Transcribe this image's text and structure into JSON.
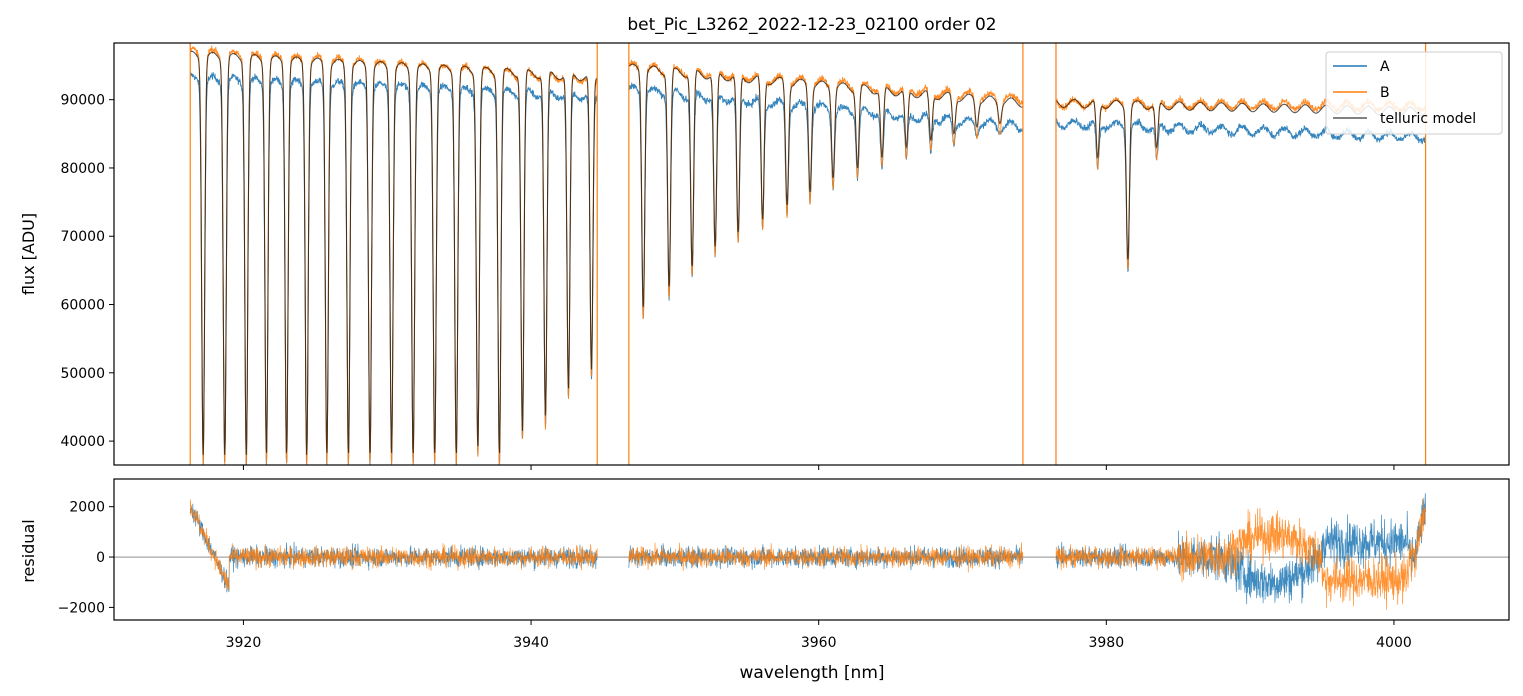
{
  "chart_data": [
    {
      "type": "line",
      "title": "bet_Pic_L3262_2022-12-23_02100  order 02",
      "xlabel": "",
      "ylabel": "flux [ADU]",
      "xlim": [
        3911,
        4008
      ],
      "ylim": [
        36500,
        98300
      ],
      "yticks": [
        40000,
        50000,
        60000,
        70000,
        80000,
        90000
      ],
      "ytick_labels": [
        "40000",
        "50000",
        "60000",
        "70000",
        "80000",
        "90000"
      ],
      "xticks": [
        3920,
        3940,
        3960,
        3980,
        4000
      ],
      "legend_position": "top-right",
      "segments": [
        {
          "x0": 3916.3,
          "x1": 3944.6,
          "A_start": 93000,
          "A_end": 90500,
          "B_start": 97000,
          "B_end": 93000
        },
        {
          "x0": 3946.8,
          "x1": 3974.2,
          "A_start": 91500,
          "A_end": 86000,
          "B_start": 94800,
          "B_end": 90000
        },
        {
          "x0": 3976.5,
          "x1": 4002.2,
          "A_start": 86500,
          "A_end": 84500,
          "B_start": 89500,
          "B_end": 89000
        }
      ],
      "absorption_lines": [
        {
          "x": 3917.2,
          "depth": 36500
        },
        {
          "x": 3918.7,
          "depth": 36500
        },
        {
          "x": 3920.2,
          "depth": 36500
        },
        {
          "x": 3921.6,
          "depth": 36500
        },
        {
          "x": 3923.0,
          "depth": 36500
        },
        {
          "x": 3924.4,
          "depth": 36500
        },
        {
          "x": 3925.8,
          "depth": 36500
        },
        {
          "x": 3927.3,
          "depth": 36500
        },
        {
          "x": 3928.8,
          "depth": 36500
        },
        {
          "x": 3930.3,
          "depth": 36500
        },
        {
          "x": 3931.8,
          "depth": 36500
        },
        {
          "x": 3933.3,
          "depth": 36500
        },
        {
          "x": 3934.8,
          "depth": 36500
        },
        {
          "x": 3936.3,
          "depth": 37500
        },
        {
          "x": 3937.8,
          "depth": 36500
        },
        {
          "x": 3939.4,
          "depth": 40000
        },
        {
          "x": 3941.0,
          "depth": 42000
        },
        {
          "x": 3942.6,
          "depth": 46000
        },
        {
          "x": 3944.2,
          "depth": 49000
        },
        {
          "x": 3947.8,
          "depth": 58000
        },
        {
          "x": 3949.6,
          "depth": 61000
        },
        {
          "x": 3951.2,
          "depth": 64000
        },
        {
          "x": 3952.8,
          "depth": 67000
        },
        {
          "x": 3954.4,
          "depth": 69000
        },
        {
          "x": 3956.1,
          "depth": 71000
        },
        {
          "x": 3957.8,
          "depth": 73000
        },
        {
          "x": 3959.4,
          "depth": 75000
        },
        {
          "x": 3961.0,
          "depth": 77000
        },
        {
          "x": 3962.7,
          "depth": 78500
        },
        {
          "x": 3964.4,
          "depth": 80000
        },
        {
          "x": 3966.1,
          "depth": 81500
        },
        {
          "x": 3967.8,
          "depth": 82500
        },
        {
          "x": 3969.4,
          "depth": 83500
        },
        {
          "x": 3971.0,
          "depth": 84500
        },
        {
          "x": 3972.6,
          "depth": 85000
        },
        {
          "x": 3979.4,
          "depth": 80000
        },
        {
          "x": 3981.5,
          "depth": 65000
        },
        {
          "x": 3983.5,
          "depth": 81500
        }
      ],
      "series": [
        {
          "name": "A",
          "color": "#1f77b4"
        },
        {
          "name": "B",
          "color": "#ff7f0e"
        },
        {
          "name": "telluric model",
          "color": "#000000"
        }
      ]
    },
    {
      "type": "line",
      "xlabel": "wavelength [nm]",
      "ylabel": "residual",
      "xlim": [
        3911,
        4008
      ],
      "ylim": [
        -2500,
        3100
      ],
      "yticks": [
        -2000,
        0,
        2000
      ],
      "ytick_labels": [
        "−2000",
        "0",
        "2000"
      ],
      "xticks": [
        3920,
        3940,
        3960,
        3980,
        4000
      ],
      "xtick_labels": [
        "3920",
        "3940",
        "3960",
        "3980",
        "4000"
      ],
      "series": [
        {
          "name": "A",
          "color": "#1f77b4"
        },
        {
          "name": "B",
          "color": "#ff7f0e"
        }
      ]
    }
  ]
}
